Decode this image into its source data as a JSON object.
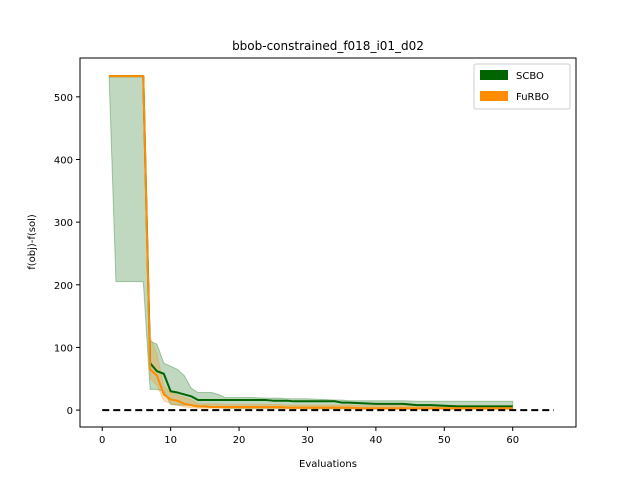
{
  "chart_data": {
    "type": "line",
    "title": "bbob-constrained_f018_i01_d02",
    "xlabel": "Evaluations",
    "ylabel": "f(obj)-f(sol)",
    "xlim": [
      -3.25,
      69.25
    ],
    "ylim": [
      -27,
      562
    ],
    "xticks": [
      0,
      10,
      20,
      30,
      40,
      50,
      60
    ],
    "yticks": [
      0,
      100,
      200,
      300,
      400,
      500
    ],
    "grid": false,
    "legend_position": "top-right",
    "reference_line": {
      "y": 0,
      "x": [
        0,
        66
      ],
      "style": "dashed",
      "color": "#000000"
    },
    "series": [
      {
        "name": "SCBO",
        "color": "#006400",
        "x": [
          1,
          2,
          3,
          4,
          5,
          6,
          7,
          8,
          9,
          10,
          11,
          12,
          13,
          14,
          15,
          16,
          17,
          18,
          20,
          22,
          24,
          25,
          26,
          27,
          28,
          30,
          32,
          34,
          35,
          36,
          38,
          40,
          42,
          44,
          46,
          48,
          50,
          52,
          54,
          56,
          58,
          60
        ],
        "mean": [
          533,
          533,
          533,
          533,
          533,
          533,
          75,
          62,
          58,
          30,
          28,
          25,
          22,
          16,
          16,
          16,
          16,
          16,
          16,
          16,
          16,
          15,
          15,
          15,
          14,
          14,
          14,
          14,
          12,
          12,
          11,
          10,
          10,
          10,
          8,
          8,
          7,
          6,
          6,
          6,
          6,
          6
        ],
        "lower": [
          533,
          205,
          205,
          205,
          205,
          205,
          33,
          33,
          30,
          9,
          8,
          8,
          7,
          5,
          5,
          4,
          4,
          3,
          3,
          3,
          3,
          3,
          3,
          3,
          3,
          2,
          2,
          2,
          2,
          2,
          2,
          2,
          2,
          2,
          2,
          2,
          2,
          2,
          2,
          2,
          2,
          2
        ],
        "upper": [
          533,
          533,
          533,
          533,
          533,
          533,
          110,
          105,
          75,
          70,
          65,
          55,
          35,
          28,
          28,
          28,
          25,
          20,
          20,
          20,
          19,
          19,
          19,
          18,
          18,
          18,
          17,
          16,
          16,
          15,
          15,
          15,
          15,
          15,
          14,
          14,
          14,
          14,
          14,
          14,
          14,
          14
        ]
      },
      {
        "name": "FuRBO",
        "color": "#ff8c00",
        "x": [
          1,
          2,
          3,
          4,
          5,
          6,
          7,
          8,
          9,
          10,
          11,
          12,
          13,
          14,
          15,
          16,
          17,
          18,
          20,
          22,
          24,
          25,
          26,
          27,
          28,
          30,
          32,
          34,
          35,
          36,
          38,
          40,
          42,
          44,
          46,
          48,
          50,
          52,
          54,
          56,
          58,
          60
        ],
        "mean": [
          533,
          533,
          533,
          533,
          533,
          533,
          65,
          55,
          25,
          17,
          15,
          10,
          8,
          6,
          6,
          5,
          5,
          5,
          5,
          5,
          5,
          5,
          5,
          4,
          4,
          4,
          4,
          4,
          4,
          4,
          3,
          3,
          3,
          3,
          3,
          3,
          3,
          3,
          3,
          3,
          3,
          3
        ],
        "lower": [
          533,
          533,
          533,
          533,
          533,
          533,
          50,
          40,
          15,
          10,
          8,
          5,
          4,
          3,
          3,
          3,
          3,
          3,
          2,
          2,
          2,
          2,
          2,
          2,
          2,
          2,
          2,
          2,
          2,
          2,
          1,
          1,
          1,
          1,
          1,
          1,
          1,
          1,
          1,
          1,
          1,
          1
        ],
        "upper": [
          533,
          533,
          533,
          533,
          533,
          533,
          117,
          90,
          38,
          28,
          24,
          20,
          17,
          10,
          10,
          10,
          10,
          9,
          9,
          9,
          9,
          9,
          9,
          8,
          8,
          8,
          8,
          8,
          8,
          8,
          7,
          7,
          7,
          7,
          7,
          7,
          7,
          7,
          7,
          7,
          7,
          7
        ]
      }
    ]
  }
}
